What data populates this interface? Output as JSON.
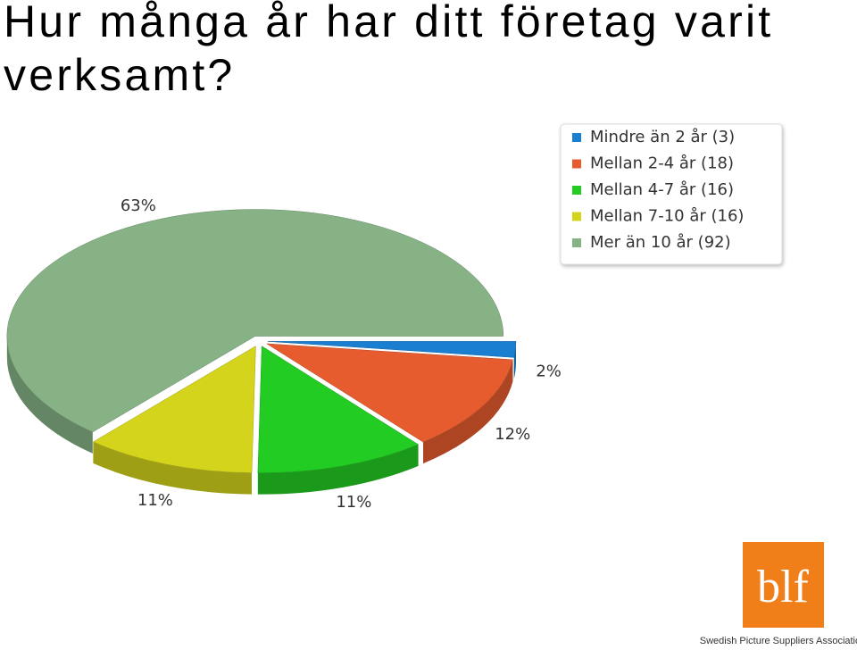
{
  "chart_data": {
    "type": "pie",
    "title": "Hur många år har ditt företag varit verksamt?",
    "categories": [
      "Mindre än 2 år (3)",
      "Mellan 2-4 år (18)",
      "Mellan 4-7 år (16)",
      "Mellan 7-10 år (16)",
      "Mer än 10 år (92)"
    ],
    "values": [
      2,
      12,
      11,
      11,
      63
    ],
    "value_labels": [
      "2%",
      "12%",
      "11%",
      "11%",
      "63%"
    ],
    "colors": [
      "#1a7fd0",
      "#e65c2e",
      "#22cc22",
      "#d4d41c",
      "#86b285"
    ],
    "legend": "top-right"
  },
  "logo": {
    "text": "blf",
    "caption": "Swedish Picture Suppliers Association"
  }
}
